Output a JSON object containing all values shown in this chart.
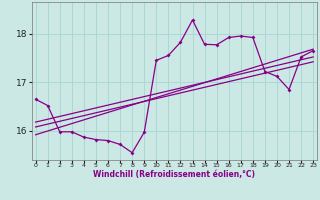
{
  "xlabel": "Windchill (Refroidissement éolien,°C)",
  "bg_color": "#cce8e4",
  "grid_color": "#aad8d4",
  "line_color": "#880088",
  "x_ticks": [
    0,
    1,
    2,
    3,
    4,
    5,
    6,
    7,
    8,
    9,
    10,
    11,
    12,
    13,
    14,
    15,
    16,
    17,
    18,
    19,
    20,
    21,
    22,
    23
  ],
  "y_ticks": [
    16,
    17,
    18
  ],
  "ylim": [
    15.4,
    18.65
  ],
  "xlim": [
    -0.3,
    23.3
  ],
  "main_x": [
    0,
    1,
    2,
    3,
    4,
    5,
    6,
    7,
    8,
    9,
    10,
    11,
    12,
    13,
    14,
    15,
    16,
    17,
    18,
    19,
    20,
    21,
    22,
    23
  ],
  "main_y": [
    16.65,
    16.52,
    15.98,
    15.98,
    15.87,
    15.82,
    15.8,
    15.72,
    15.55,
    15.97,
    17.45,
    17.55,
    17.82,
    18.28,
    17.78,
    17.77,
    17.92,
    17.95,
    17.92,
    17.22,
    17.12,
    16.85,
    17.52,
    17.65
  ],
  "trend1_x": [
    0,
    23
  ],
  "trend1_y": [
    16.18,
    17.52
  ],
  "trend2_x": [
    0,
    23
  ],
  "trend2_y": [
    16.08,
    17.42
  ],
  "trend3_x": [
    0,
    23
  ],
  "trend3_y": [
    15.92,
    17.68
  ]
}
